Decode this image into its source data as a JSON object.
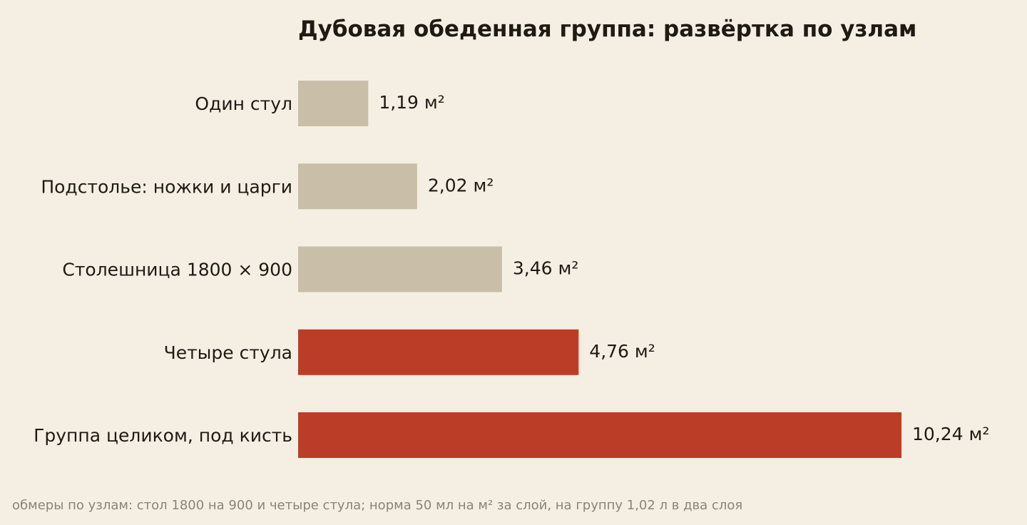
{
  "chart_data": {
    "type": "bar",
    "orientation": "horizontal",
    "title": "Дубовая обеденная группа: развёртка по узлам",
    "categories": [
      "Один стул",
      "Подстолье: ножки и царги",
      "Столешница 1800 × 900",
      "Четыре стула",
      "Группа целиком, под кисть"
    ],
    "values": [
      1.19,
      2.02,
      3.46,
      4.76,
      10.24
    ],
    "value_labels": [
      "1,19 м²",
      "2,02 м²",
      "3,46 м²",
      "4,76 м²",
      "10,24 м²"
    ],
    "unit": "м²",
    "highlighted": [
      false,
      false,
      false,
      true,
      true
    ],
    "xlim": [
      0,
      10.24
    ],
    "grid": false,
    "legend": "none",
    "footnote": "обмеры по узлам: стол 1800 на 900 и четыре стула; норма 50 мл на м² за слой, на группу 1,02 л в два слоя"
  },
  "colors": {
    "background": "#f5efe3",
    "bar_muted": "#c9bfa8",
    "bar_accent": "#bc3d27",
    "text": "#1e1a14",
    "footnote": "#8a8378"
  }
}
